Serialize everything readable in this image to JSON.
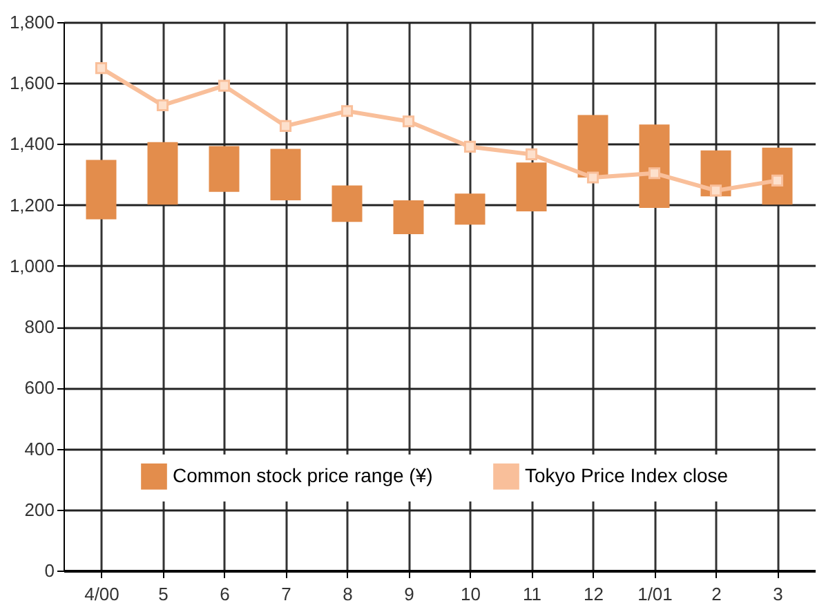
{
  "chart_data": {
    "type": "bar",
    "categories": [
      "4/00",
      "5",
      "6",
      "7",
      "8",
      "9",
      "10",
      "11",
      "12",
      "1/01",
      "2",
      "3"
    ],
    "series": [
      {
        "name": "Common stock price range (¥)",
        "color": "#e38d4c",
        "base": [
          1153,
          1201,
          1243,
          1215,
          1144,
          1104,
          1135,
          1179,
          1290,
          1190,
          1228,
          1201
        ],
        "values": [
          195,
          205,
          150,
          169,
          120,
          111,
          102,
          160,
          205,
          274,
          151,
          187
        ]
      },
      {
        "name": "Tokyo Price Index close",
        "type": "line",
        "color": "#f9bf9a",
        "marker": "square",
        "values": [
          1649,
          1527,
          1591,
          1459,
          1508,
          1474,
          1391,
          1366,
          1290,
          1304,
          1247,
          1280
        ]
      }
    ],
    "ylim": [
      0,
      1800
    ],
    "yticks": [
      0,
      200,
      400,
      600,
      800,
      {
        "value": 1000,
        "label": "1,000"
      },
      {
        "value": 1200,
        "label": "1,200"
      },
      {
        "value": 1400,
        "label": "1,400"
      },
      {
        "value": 1600,
        "label": "1,600"
      },
      {
        "value": 1800,
        "label": "1,800"
      }
    ],
    "grid": true,
    "legend": "bottom"
  }
}
